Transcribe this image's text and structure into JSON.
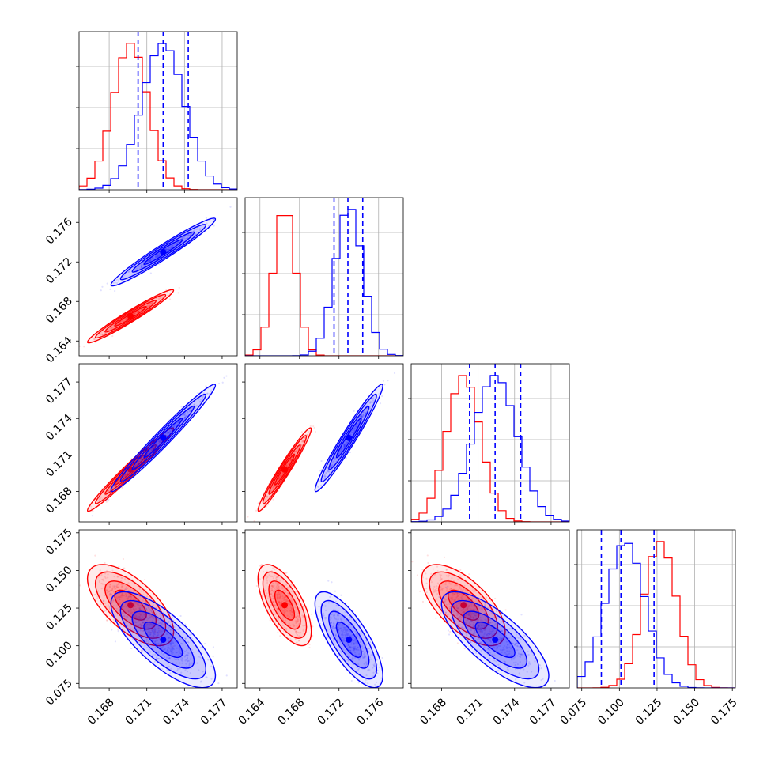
{
  "chart_data": {
    "type": "corner",
    "parameters": 4,
    "colors": {
      "red": "#ff0000",
      "blue": "#0000ff"
    },
    "series": [
      {
        "color": "#ff0000",
        "dims": [
          {
            "mean": 0.1697,
            "sd": 0.0014,
            "kind": "hist"
          },
          {
            "mean": 0.1665,
            "sd": 0.0011
          },
          {
            "mean": 0.1698,
            "sd": 0.0014
          },
          {
            "mean": 0.127,
            "sd": 0.011
          }
        ]
      },
      {
        "color": "#0000ff",
        "dims": [
          {
            "mean": 0.1723,
            "sd": 0.0017
          },
          {
            "mean": 0.173,
            "sd": 0.0014
          },
          {
            "mean": 0.1724,
            "sd": 0.0018
          },
          {
            "mean": 0.104,
            "sd": 0.013
          }
        ]
      }
    ],
    "quantiles_blue": [
      [
        0.1703,
        0.1723,
        0.1743
      ],
      [
        0.1715,
        0.1729,
        0.1744
      ],
      [
        0.1703,
        0.1724,
        0.1745
      ],
      [
        0.088,
        0.101,
        0.123
      ]
    ],
    "axis_ranges": [
      [
        0.1656,
        0.1782
      ],
      [
        0.1625,
        0.1785
      ],
      [
        0.1655,
        0.1785
      ],
      [
        0.072,
        0.177
      ]
    ],
    "ticks": [
      [
        "0.168",
        "0.171",
        "0.174",
        "0.177"
      ],
      [
        "0.164",
        "0.168",
        "0.172",
        "0.176"
      ],
      [
        "0.168",
        "0.171",
        "0.174",
        "0.177"
      ],
      [
        "0.075",
        "0.100",
        "0.125",
        "0.150",
        "0.175"
      ]
    ],
    "tick_values": [
      [
        0.168,
        0.171,
        0.174,
        0.177
      ],
      [
        0.164,
        0.168,
        0.172,
        0.176
      ],
      [
        0.168,
        0.171,
        0.174,
        0.177
      ],
      [
        0.075,
        0.1,
        0.125,
        0.15,
        0.175
      ]
    ],
    "correlations": {
      "red": {
        "1-0": 0.97,
        "2-0": 0.98,
        "2-1": 0.97,
        "3-0": -0.65,
        "3-1": -0.65,
        "3-2": -0.65
      },
      "blue": {
        "1-0": 0.97,
        "2-0": 0.98,
        "2-1": 0.97,
        "3-0": -0.75,
        "3-1": -0.75,
        "3-2": -0.75
      }
    },
    "grid": true,
    "title": "",
    "xlabel": "",
    "ylabel": ""
  }
}
